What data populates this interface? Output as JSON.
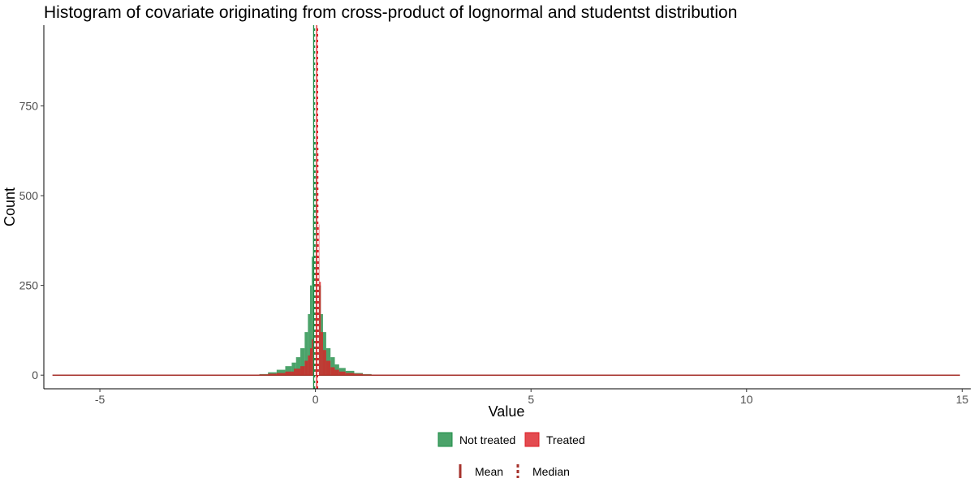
{
  "chart_data": {
    "type": "histogram",
    "title": "Histogram of covariate originating from cross-product of lognormal and studentst distribution",
    "xlabel": "Value",
    "ylabel": "Count",
    "xlim": [
      -6.3,
      15.2
    ],
    "ylim": [
      -38,
      975
    ],
    "x_ticks": [
      -5,
      0,
      5,
      10,
      15
    ],
    "y_ticks": [
      0,
      250,
      500,
      750
    ],
    "x_tick_labels": [
      "-5",
      "0",
      "5",
      "10",
      "15"
    ],
    "y_tick_labels": [
      "0",
      "250",
      "500",
      "750"
    ],
    "x_range": [
      -6.1,
      14.95
    ],
    "grid": false,
    "legend_position": "bottom",
    "series": [
      {
        "name": "Not treated",
        "color": "#1e8c45",
        "x": [
          -1.2,
          -1.0,
          -0.8,
          -0.6,
          -0.5,
          -0.4,
          -0.3,
          -0.2,
          -0.15,
          -0.1,
          -0.07,
          -0.04,
          -0.02,
          0.0,
          0.02,
          0.04,
          0.07,
          0.1,
          0.15,
          0.2,
          0.3,
          0.4,
          0.5,
          0.6,
          0.8,
          1.0,
          1.2
        ],
        "y": [
          3,
          8,
          15,
          25,
          35,
          50,
          75,
          120,
          170,
          250,
          330,
          450,
          560,
          650,
          560,
          450,
          330,
          250,
          170,
          120,
          75,
          50,
          30,
          20,
          12,
          6,
          3
        ]
      },
      {
        "name": "Treated",
        "color": "#dc1e24",
        "x": [
          -1.2,
          -1.0,
          -0.8,
          -0.6,
          -0.4,
          -0.3,
          -0.2,
          -0.15,
          -0.1,
          -0.07,
          -0.04,
          -0.02,
          0.0,
          0.02,
          0.04,
          0.06,
          0.08,
          0.1,
          0.15,
          0.2,
          0.3,
          0.4,
          0.5,
          0.6,
          0.8,
          1.0,
          1.2
        ],
        "y": [
          2,
          4,
          6,
          10,
          18,
          25,
          40,
          55,
          75,
          100,
          150,
          210,
          300,
          350,
          470,
          640,
          420,
          260,
          120,
          70,
          40,
          22,
          15,
          10,
          6,
          4,
          2
        ]
      }
    ],
    "reference_lines": [
      {
        "name": "Mean",
        "style": "solid"
      },
      {
        "name": "Median",
        "style": "dashed"
      }
    ],
    "mean_lines": [
      {
        "series": "Not treated",
        "x": -0.03,
        "color": "#1e8c45"
      },
      {
        "series": "Treated",
        "x": 0.04,
        "color": "#dc1e24"
      }
    ],
    "median_lines": [
      {
        "series": "Not treated",
        "x": -0.01,
        "color": "#ffffff"
      },
      {
        "series": "Treated",
        "x": 0.06,
        "color": "#ffffff"
      }
    ],
    "line_color": "#a6322c"
  }
}
